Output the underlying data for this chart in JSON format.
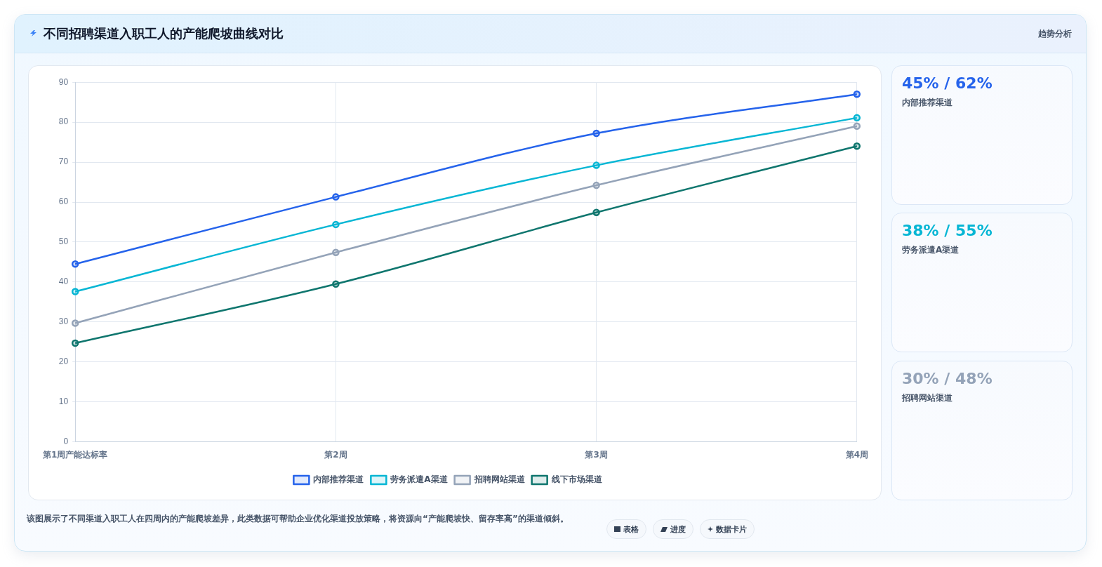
{
  "chart_data": [
    {
      "type": "line",
      "title": "不同招聘渠道入职工人的产能爬坡曲线对比",
      "categories": [
        "第1周产能达标率",
        "第2周",
        "第3周",
        "第4周"
      ],
      "series": [
        {
          "name": "内部推荐渠道",
          "color": "#2563eb",
          "values": [
            44.5,
            61.3,
            77.2,
            87.0
          ]
        },
        {
          "name": "劳务派遣A渠道",
          "color": "#06b6d4",
          "values": [
            37.6,
            54.4,
            69.2,
            81.1
          ]
        },
        {
          "name": "招聘网站渠道",
          "color": "#94a3b8",
          "values": [
            29.7,
            47.4,
            64.2,
            79.0
          ]
        },
        {
          "name": "线下市场渠道",
          "color": "#0f766e",
          "values": [
            24.7,
            39.5,
            57.4,
            74.0
          ]
        }
      ],
      "ylim": [
        0,
        90
      ],
      "yticks": [
        0,
        10,
        20,
        30,
        40,
        50,
        60,
        70,
        80,
        90
      ],
      "grid": true,
      "legend": "bottom",
      "marker": "circle",
      "annotations": [
        "趋势分析",
        "该图展示了不同渠道入职工人在四周内的产能爬坡差异，此类数据可帮助企业优化渠道投放策略，将资源向“产能爬坡快、留存率高”的渠道倾斜。",
        "表格",
        "进度",
        "数据卡片"
      ]
    },
    {
      "type": "other",
      "title": "45% / 62%",
      "subtitle": "内部推荐渠道",
      "color": "#2563eb"
    },
    {
      "type": "other",
      "title": "38% / 55%",
      "subtitle": "劳务派遣A渠道",
      "color": "#06b6d4"
    },
    {
      "type": "other",
      "title": "30% / 48%",
      "subtitle": "招聘网站渠道",
      "color": "#94a3b8"
    }
  ]
}
